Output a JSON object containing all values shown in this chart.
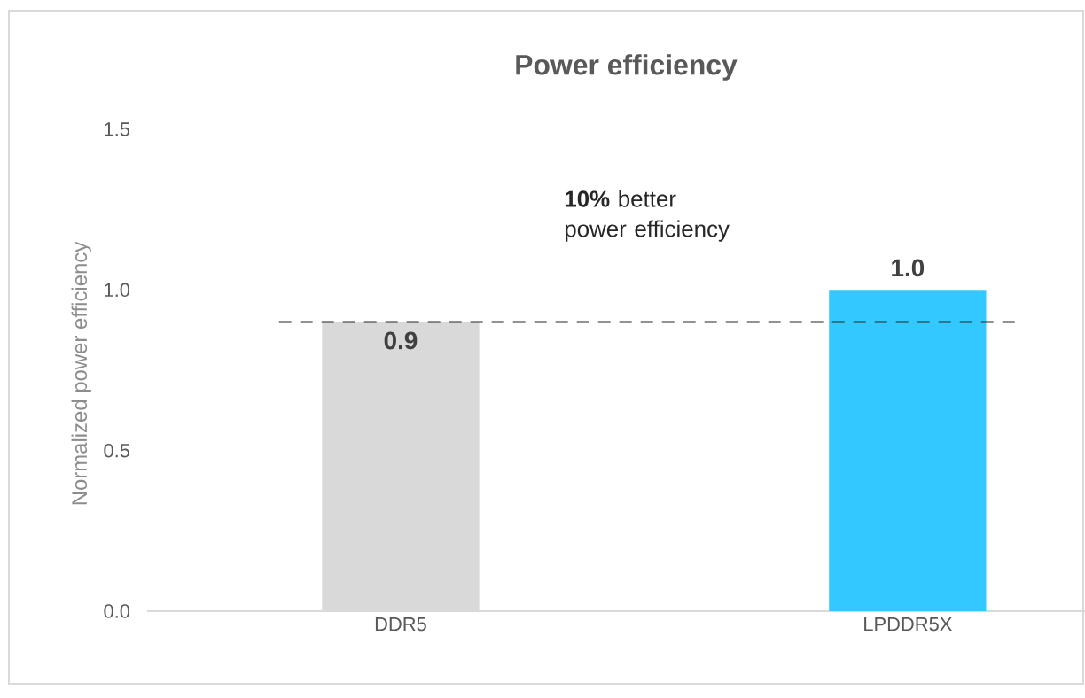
{
  "chart_data": {
    "type": "bar",
    "title": "Power efficiency",
    "ylabel": "Normalized power efficiency",
    "categories": [
      "DDR5",
      "LPDDR5X"
    ],
    "values": [
      0.9,
      1.0
    ],
    "colors": [
      "#d9d9d9",
      "#33c8ff"
    ],
    "value_labels": [
      "0.9",
      "1.0"
    ],
    "ylim": [
      0,
      1.5
    ],
    "yticks": [
      {
        "value": 0,
        "label": "0.0"
      },
      {
        "value": 0.5,
        "label": "0.5"
      },
      {
        "value": 1.0,
        "label": "1.0"
      },
      {
        "value": 1.5,
        "label": "1.5"
      }
    ],
    "ref_lines": [
      {
        "axis": "y",
        "value": 0.9,
        "color": "#262626",
        "line_style": "dashed"
      }
    ],
    "annotations": [
      "**10%** better power efficiency"
    ],
    "grid": false
  }
}
